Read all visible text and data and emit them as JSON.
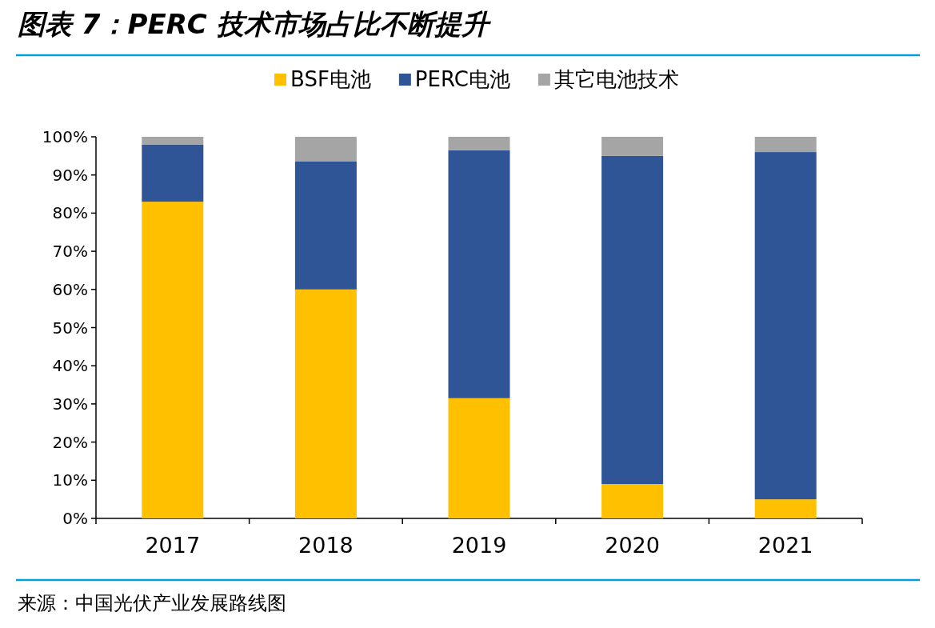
{
  "chart_data": {
    "type": "bar",
    "title": "图表 7：PERC 技术市场占比不断提升",
    "stacked": true,
    "legend": "top",
    "categories": [
      "2017",
      "2018",
      "2019",
      "2020",
      "2021"
    ],
    "series": [
      {
        "name": "BSF电池",
        "color": "#ffc000",
        "values": [
          83,
          60,
          31.5,
          9,
          5
        ]
      },
      {
        "name": "PERC电池",
        "color": "#2f5597",
        "values": [
          15,
          33.5,
          65,
          86,
          91
        ]
      },
      {
        "name": "其它电池技术",
        "color": "#a5a5a5",
        "values": [
          2,
          6.5,
          3.5,
          5,
          4
        ]
      }
    ],
    "ylim": [
      0,
      100
    ],
    "yticks": [
      {
        "value": 0,
        "label": "0%"
      },
      {
        "value": 10,
        "label": "10%"
      },
      {
        "value": 20,
        "label": "20%"
      },
      {
        "value": 30,
        "label": "30%"
      },
      {
        "value": 40,
        "label": "40%"
      },
      {
        "value": 50,
        "label": "50%"
      },
      {
        "value": 60,
        "label": "60%"
      },
      {
        "value": 70,
        "label": "70%"
      },
      {
        "value": 80,
        "label": "80%"
      },
      {
        "value": 90,
        "label": "90%"
      },
      {
        "value": 100,
        "label": "100%"
      }
    ],
    "annotations": [
      "来源：中国光伏产业发展路线图"
    ]
  }
}
